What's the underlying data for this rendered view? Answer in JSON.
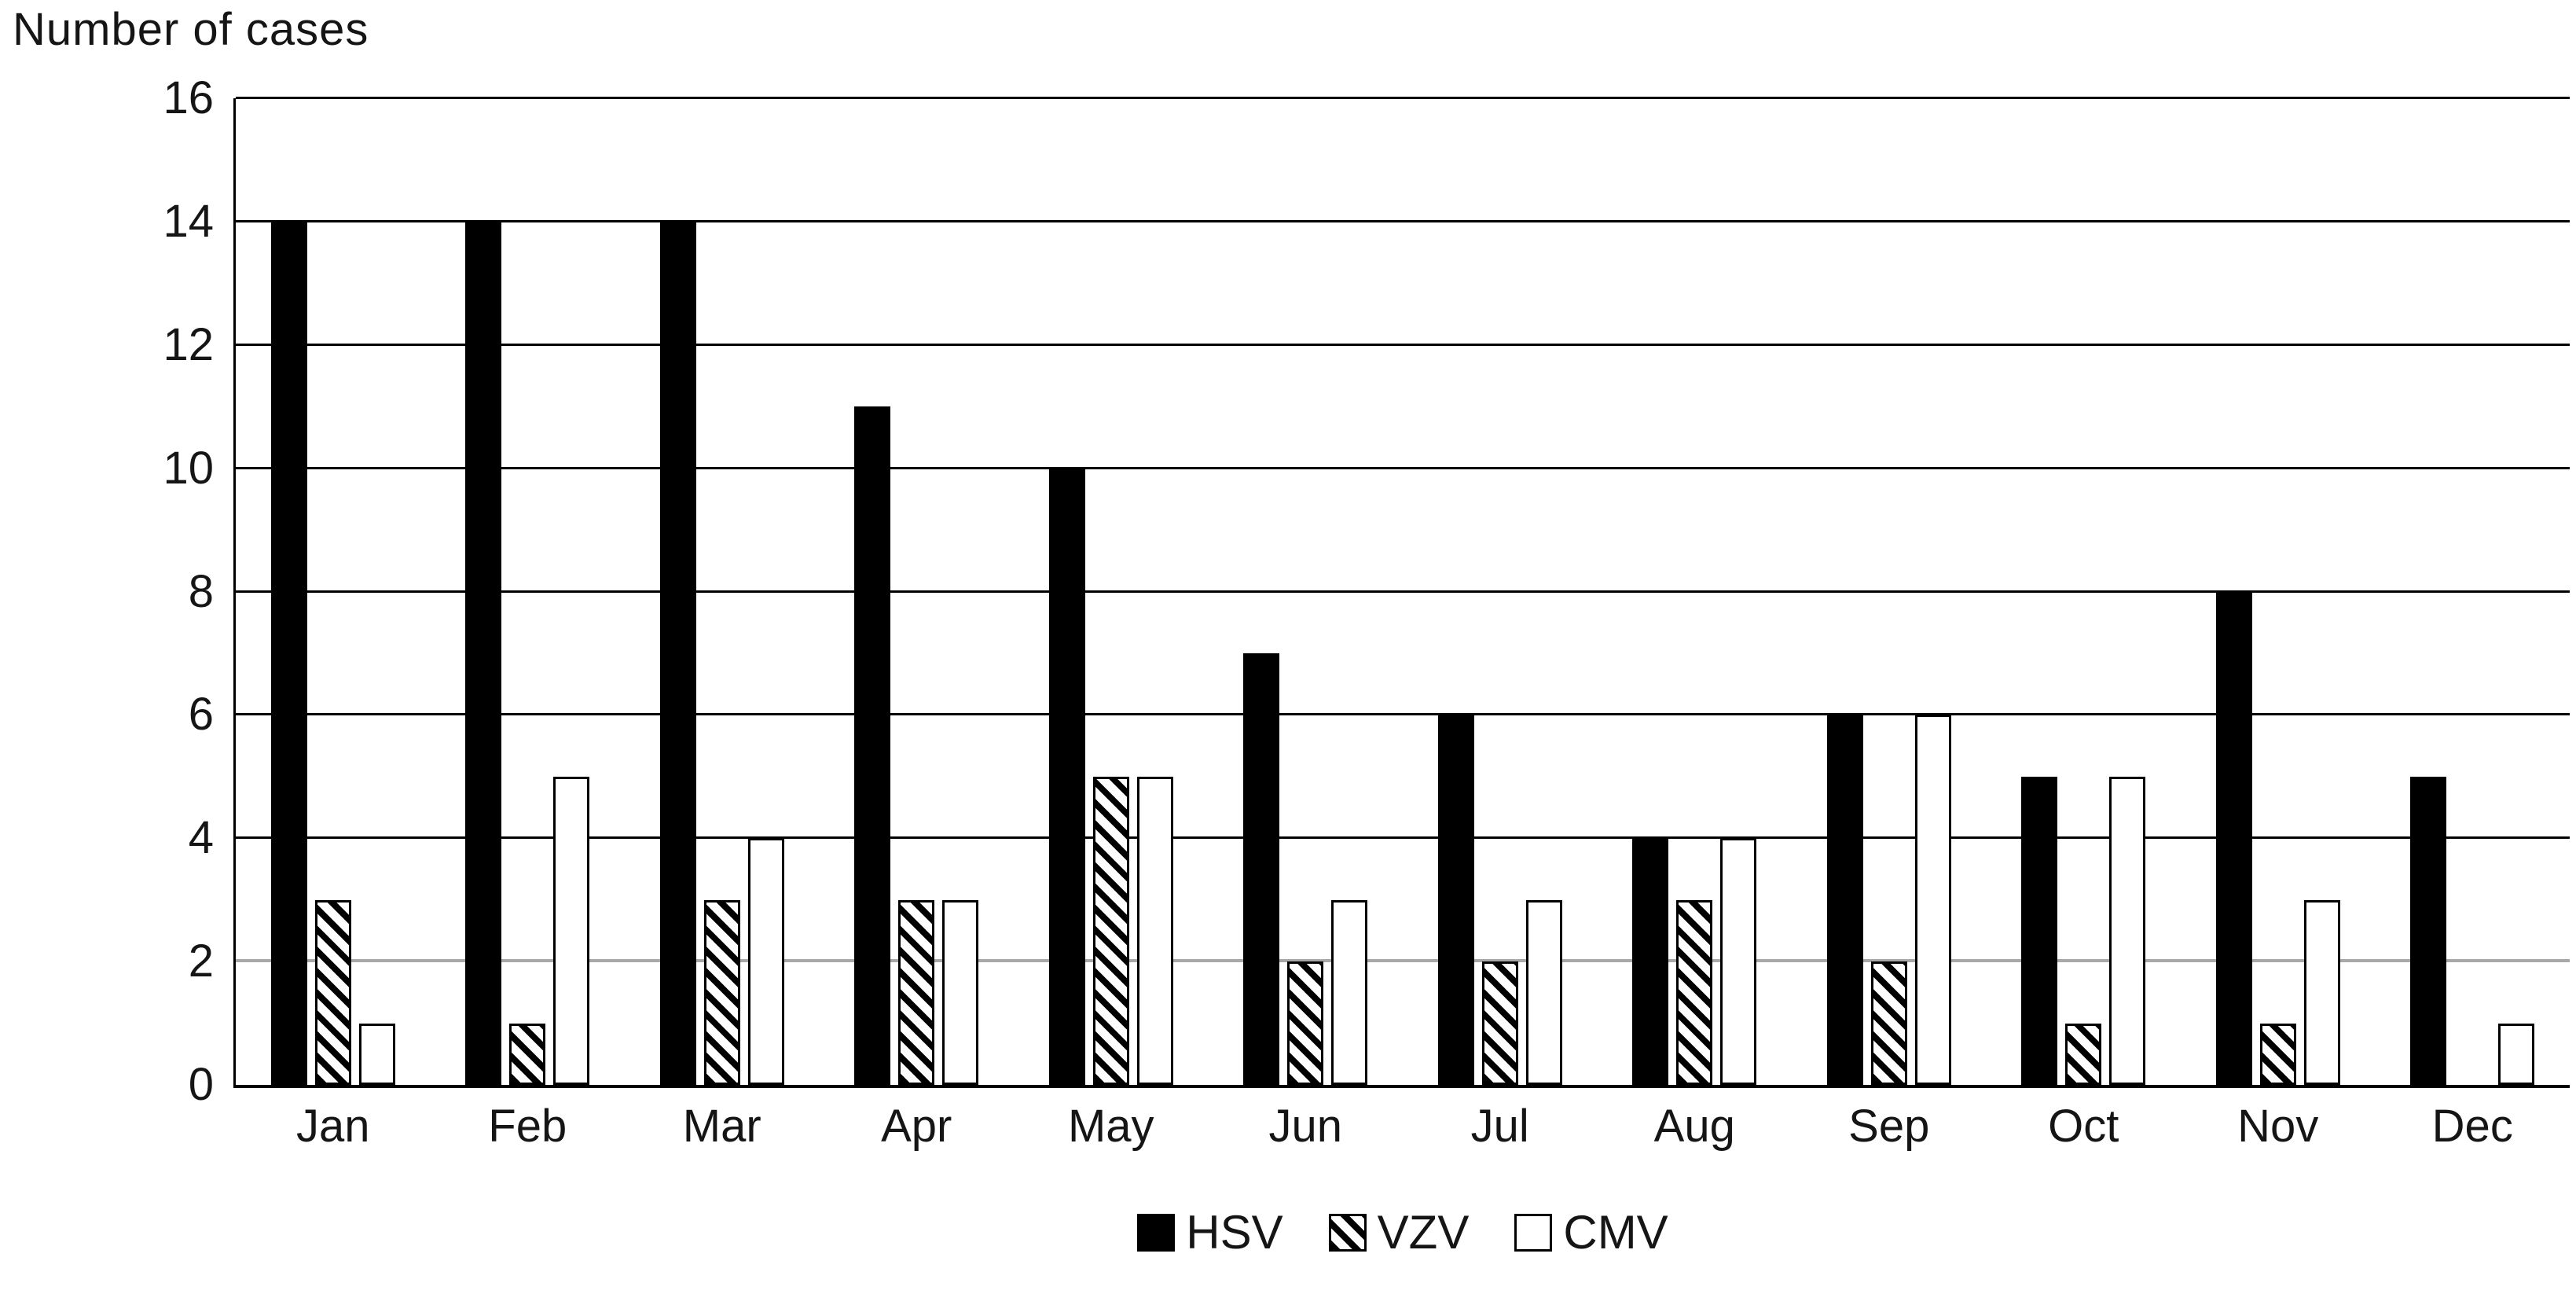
{
  "chart_data": {
    "type": "bar",
    "title": "Number of cases",
    "categories": [
      "Jan",
      "Feb",
      "Mar",
      "Apr",
      "May",
      "Jun",
      "Jul",
      "Aug",
      "Sep",
      "Oct",
      "Nov",
      "Dec"
    ],
    "series": [
      {
        "name": "HSV",
        "fill": "solid-black",
        "color": "#000000",
        "values": [
          14,
          14,
          14,
          11,
          10,
          7,
          6,
          4,
          6,
          5,
          8,
          5
        ]
      },
      {
        "name": "VZV",
        "fill": "diagonal-hatch",
        "color": "#000000",
        "values": [
          3,
          1,
          3,
          3,
          5,
          2,
          2,
          3,
          2,
          1,
          1,
          0
        ]
      },
      {
        "name": "CMV",
        "fill": "white-outline",
        "color": "#ffffff",
        "values": [
          1,
          5,
          4,
          3,
          5,
          3,
          3,
          4,
          6,
          5,
          3,
          1
        ]
      }
    ],
    "ylabel": "Number of cases",
    "xlabel": "",
    "ylim": [
      0,
      16
    ],
    "ytick_step": 2,
    "yticks": [
      0,
      2,
      4,
      6,
      8,
      10,
      12,
      14,
      16
    ],
    "grid": "horizontal",
    "gridline_color": "#000000",
    "gridline_color_at_2": "#a8a8a8",
    "axis_color": "#000000",
    "legend_position": "bottom-center",
    "legend_entries": [
      "HSV",
      "VZV",
      "CMV"
    ]
  }
}
